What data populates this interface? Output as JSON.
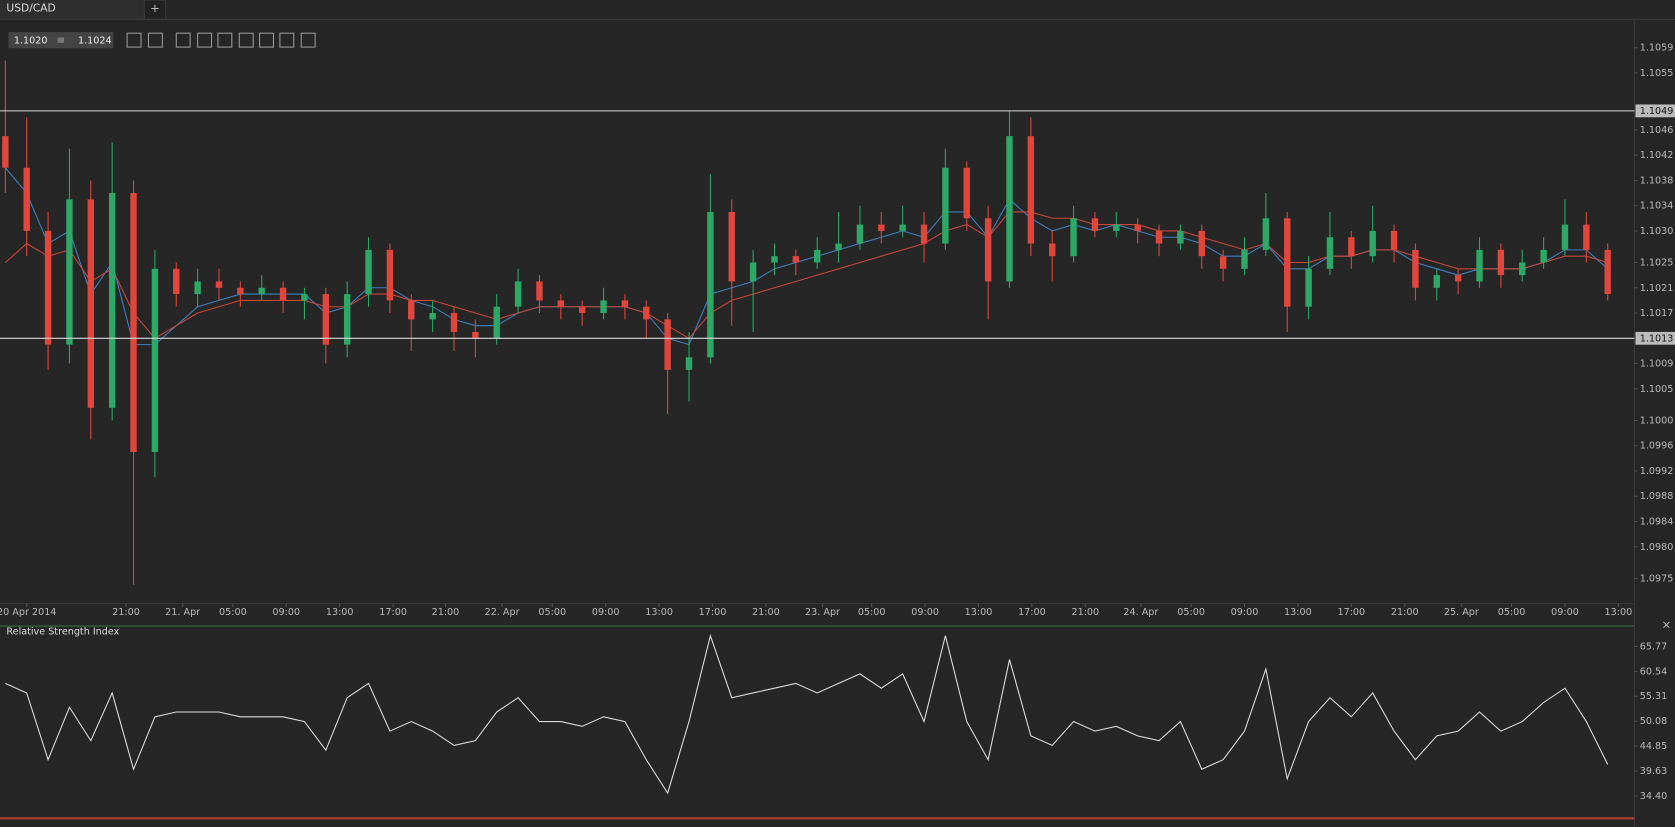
{
  "tab": {
    "title": "USD/CAD",
    "add": "+"
  },
  "quote": {
    "bid": "1.1020",
    "ask": "1.1024"
  },
  "chart_data": [
    {
      "type": "candlestick",
      "open": [
        1.1045,
        1.104,
        1.103,
        1.1012,
        1.1035,
        1.1002,
        1.1036,
        1.0995,
        1.1024,
        1.102,
        1.1022,
        1.1021,
        1.102,
        1.1021,
        1.1019,
        1.102,
        1.1012,
        1.102,
        1.1027,
        1.1019,
        1.1016,
        1.1017,
        1.1014,
        1.1013,
        1.1018,
        1.1022,
        1.1019,
        1.1018,
        1.1017,
        1.1019,
        1.1018,
        1.1016,
        1.1008,
        1.101,
        1.1033,
        1.1022,
        1.1025,
        1.1026,
        1.1025,
        1.1027,
        1.1028,
        1.1031,
        1.103,
        1.1031,
        1.1028,
        1.104,
        1.1032,
        1.1022,
        1.1045,
        1.1028,
        1.1026,
        1.1032,
        1.103,
        1.1031,
        1.103,
        1.1028,
        1.103,
        1.1026,
        1.1024,
        1.1027,
        1.1032,
        1.1018,
        1.1024,
        1.1029,
        1.1026,
        1.103,
        1.1027,
        1.1021,
        1.1023,
        1.1022,
        1.1027,
        1.1023,
        1.1025,
        1.1027,
        1.1031,
        1.1027
      ],
      "high": [
        1.1057,
        1.1048,
        1.1033,
        1.1043,
        1.1038,
        1.1044,
        1.1038,
        1.1027,
        1.1025,
        1.1024,
        1.1024,
        1.1022,
        1.1023,
        1.1022,
        1.1021,
        1.1021,
        1.1022,
        1.1029,
        1.1028,
        1.102,
        1.1019,
        1.1018,
        1.1016,
        1.102,
        1.1024,
        1.1023,
        1.102,
        1.1019,
        1.1021,
        1.102,
        1.1019,
        1.1017,
        1.1014,
        1.1039,
        1.1035,
        1.1027,
        1.1028,
        1.1027,
        1.1029,
        1.1033,
        1.1034,
        1.1033,
        1.1034,
        1.1033,
        1.1043,
        1.1041,
        1.1034,
        1.1049,
        1.1048,
        1.103,
        1.1034,
        1.1033,
        1.1033,
        1.1032,
        1.1031,
        1.1031,
        1.1031,
        1.1027,
        1.1029,
        1.1036,
        1.1033,
        1.1026,
        1.1033,
        1.103,
        1.1034,
        1.1031,
        1.1028,
        1.1024,
        1.1024,
        1.1029,
        1.1028,
        1.1027,
        1.1029,
        1.1035,
        1.1033,
        1.1028
      ],
      "low": [
        1.1036,
        1.1026,
        1.1008,
        1.1009,
        1.0997,
        1.1,
        1.0974,
        1.0991,
        1.1018,
        1.1018,
        1.1019,
        1.1018,
        1.1019,
        1.1017,
        1.1016,
        1.1009,
        1.101,
        1.1018,
        1.1017,
        1.1011,
        1.1014,
        1.1011,
        1.101,
        1.1012,
        1.1017,
        1.1017,
        1.1016,
        1.1015,
        1.1016,
        1.1016,
        1.1013,
        1.1001,
        1.1003,
        1.1009,
        1.1015,
        1.1014,
        1.1023,
        1.1023,
        1.1024,
        1.1025,
        1.1027,
        1.1028,
        1.1029,
        1.1025,
        1.1027,
        1.103,
        1.1016,
        1.1021,
        1.1026,
        1.1022,
        1.1025,
        1.1029,
        1.1029,
        1.1028,
        1.1026,
        1.1027,
        1.1024,
        1.1022,
        1.1023,
        1.1026,
        1.1014,
        1.1016,
        1.1023,
        1.1024,
        1.1025,
        1.1025,
        1.1019,
        1.1019,
        1.102,
        1.1021,
        1.1021,
        1.1022,
        1.1024,
        1.1026,
        1.1025,
        1.1019
      ],
      "close": [
        1.104,
        1.103,
        1.1012,
        1.1035,
        1.1002,
        1.1036,
        1.0995,
        1.1024,
        1.102,
        1.1022,
        1.1021,
        1.102,
        1.1021,
        1.1019,
        1.102,
        1.1012,
        1.102,
        1.1027,
        1.1019,
        1.1016,
        1.1017,
        1.1014,
        1.1013,
        1.1018,
        1.1022,
        1.1019,
        1.1018,
        1.1017,
        1.1019,
        1.1018,
        1.1016,
        1.1008,
        1.101,
        1.1033,
        1.1022,
        1.1025,
        1.1026,
        1.1025,
        1.1027,
        1.1028,
        1.1031,
        1.103,
        1.1031,
        1.1028,
        1.104,
        1.1032,
        1.1022,
        1.1045,
        1.1028,
        1.1026,
        1.1032,
        1.103,
        1.1031,
        1.103,
        1.1028,
        1.103,
        1.1026,
        1.1024,
        1.1027,
        1.1032,
        1.1018,
        1.1024,
        1.1029,
        1.1026,
        1.103,
        1.1027,
        1.1021,
        1.1023,
        1.1022,
        1.1027,
        1.1023,
        1.1025,
        1.1027,
        1.1031,
        1.1027,
        1.102
      ],
      "up_color": "#2da866",
      "down_color": "#e0463b",
      "series": [
        {
          "color": "#3f7fbf",
          "values": [
            1.104,
            1.1036,
            1.1028,
            1.103,
            1.102,
            1.1025,
            1.1012,
            1.1012,
            1.1015,
            1.1018,
            1.1019,
            1.102,
            1.102,
            1.102,
            1.102,
            1.1017,
            1.1018,
            1.1021,
            1.1021,
            1.1019,
            1.1018,
            1.1016,
            1.1015,
            1.1015,
            1.1017,
            1.1018,
            1.1018,
            1.1018,
            1.1018,
            1.1018,
            1.1017,
            1.1013,
            1.1012,
            1.102,
            1.1021,
            1.1022,
            1.1024,
            1.1025,
            1.1026,
            1.1027,
            1.1028,
            1.1029,
            1.103,
            1.1029,
            1.1033,
            1.1033,
            1.1029,
            1.1035,
            1.1032,
            1.103,
            1.1031,
            1.103,
            1.1031,
            1.103,
            1.1029,
            1.1029,
            1.1028,
            1.1026,
            1.1026,
            1.1028,
            1.1024,
            1.1024,
            1.1026,
            1.1026,
            1.1027,
            1.1027,
            1.1025,
            1.1024,
            1.1023,
            1.1024,
            1.1024,
            1.1024,
            1.1025,
            1.1027,
            1.1027,
            1.1024
          ]
        },
        {
          "color": "#c8473c",
          "values": [
            1.1025,
            1.1028,
            1.1026,
            1.1027,
            1.1022,
            1.1024,
            1.1017,
            1.1013,
            1.1015,
            1.1017,
            1.1018,
            1.1019,
            1.1019,
            1.1019,
            1.1019,
            1.1018,
            1.1018,
            1.102,
            1.102,
            1.1019,
            1.1019,
            1.1018,
            1.1017,
            1.1016,
            1.1017,
            1.1018,
            1.1018,
            1.1018,
            1.1018,
            1.1018,
            1.1017,
            1.1015,
            1.1013,
            1.1017,
            1.1019,
            1.102,
            1.1021,
            1.1022,
            1.1023,
            1.1024,
            1.1025,
            1.1026,
            1.1027,
            1.1028,
            1.103,
            1.1031,
            1.1029,
            1.1033,
            1.1033,
            1.1032,
            1.1032,
            1.1031,
            1.1031,
            1.1031,
            1.103,
            1.103,
            1.1029,
            1.1028,
            1.1027,
            1.1028,
            1.1025,
            1.1025,
            1.1026,
            1.1026,
            1.1027,
            1.1027,
            1.1026,
            1.1025,
            1.1024,
            1.1024,
            1.1024,
            1.1024,
            1.1025,
            1.1026,
            1.1026,
            1.1025
          ]
        }
      ],
      "hlines": [
        1.1049,
        1.1013
      ],
      "xlim": [
        -0.25,
        76
      ],
      "ylim": [
        1.0971,
        1.1064
      ],
      "yticks": [
        1.1059,
        1.1055,
        1.1046,
        1.1042,
        1.1038,
        1.1034,
        {
          "value": 1.103,
          "label": "1.1030"
        },
        1.1025,
        1.1021,
        1.1017,
        1.1009,
        1.1005,
        {
          "value": 1.1,
          "label": "1.1000"
        },
        1.0996,
        1.0992,
        1.0988,
        1.0984,
        {
          "value": 1.098,
          "label": "1.0980"
        },
        1.0975
      ],
      "xticks": [
        {
          "value": 1,
          "label": "20 Apr 2014"
        },
        {
          "value": 5.65,
          "label": "21:00"
        },
        {
          "value": 8.3,
          "label": "21. Apr"
        },
        {
          "value": 10.65,
          "label": "05:00"
        },
        {
          "value": 13.15,
          "label": "09:00"
        },
        {
          "value": 15.65,
          "label": "13:00"
        },
        {
          "value": 18.15,
          "label": "17:00"
        },
        {
          "value": 20.6,
          "label": "21:00"
        },
        {
          "value": 23.25,
          "label": "22. Apr"
        },
        {
          "value": 25.6,
          "label": "05:00"
        },
        {
          "value": 28.1,
          "label": "09:00"
        },
        {
          "value": 30.6,
          "label": "13:00"
        },
        {
          "value": 33.1,
          "label": "17:00"
        },
        {
          "value": 35.6,
          "label": "21:00"
        },
        {
          "value": 38.25,
          "label": "23. Apr"
        },
        {
          "value": 40.55,
          "label": "05:00"
        },
        {
          "value": 43.05,
          "label": "09:00"
        },
        {
          "value": 45.55,
          "label": "13:00"
        },
        {
          "value": 48.05,
          "label": "17:00"
        },
        {
          "value": 50.55,
          "label": "21:00"
        },
        {
          "value": 53.15,
          "label": "24. Apr"
        },
        {
          "value": 55.5,
          "label": "05:00"
        },
        {
          "value": 58,
          "label": "09:00"
        },
        {
          "value": 60.5,
          "label": "13:00"
        },
        {
          "value": 63,
          "label": "17:00"
        },
        {
          "value": 65.5,
          "label": "21:00"
        },
        {
          "value": 68.15,
          "label": "25. Apr"
        },
        {
          "value": 70.5,
          "label": "05:00"
        },
        {
          "value": 73,
          "label": "09:00"
        },
        {
          "value": 75.5,
          "label": "13:00"
        }
      ]
    },
    {
      "type": "line",
      "title": "Relative Strength Index",
      "color": "#dddddd",
      "values": [
        58,
        56,
        42,
        53,
        46,
        56,
        40,
        51,
        52,
        52,
        52,
        51,
        51,
        51,
        50,
        44,
        55,
        58,
        48,
        50,
        48,
        45,
        46,
        52,
        55,
        50,
        50,
        49,
        51,
        50,
        42,
        35,
        50,
        68,
        55,
        56,
        57,
        58,
        56,
        58,
        60,
        57,
        60,
        50,
        68,
        50,
        42,
        63,
        47,
        45,
        50,
        48,
        49,
        47,
        46,
        50,
        40,
        42,
        48,
        61,
        38,
        50,
        55,
        51,
        56,
        48,
        42,
        47,
        48,
        52,
        48,
        50,
        54,
        57,
        50,
        41
      ],
      "xlim": [
        -0.25,
        76
      ],
      "ylim": [
        29.25,
        70.25
      ],
      "yticks": [
        65.77,
        60.54,
        55.31,
        50.08,
        44.85,
        39.63,
        {
          "value": 34.4,
          "label": "34.40"
        }
      ]
    }
  ]
}
